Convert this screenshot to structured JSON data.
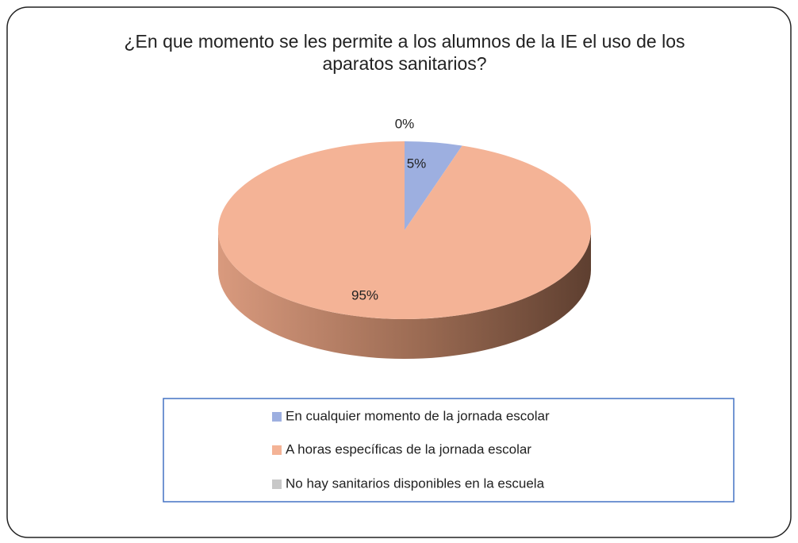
{
  "chart_data": {
    "type": "pie3d",
    "title": "¿En que momento se les permite a los alumnos de la IE el uso de los aparatos sanitarios?",
    "categories": [
      "En cualquier momento de la jornada escolar",
      "A horas específicas de la jornada escolar",
      "No hay sanitarios disponibles en la escuela"
    ],
    "values": [
      5,
      95,
      0
    ],
    "value_labels": [
      "5%",
      "95%",
      "0%"
    ],
    "colors": [
      "#9dafe0",
      "#f4b396",
      "#c8c8c8"
    ]
  }
}
